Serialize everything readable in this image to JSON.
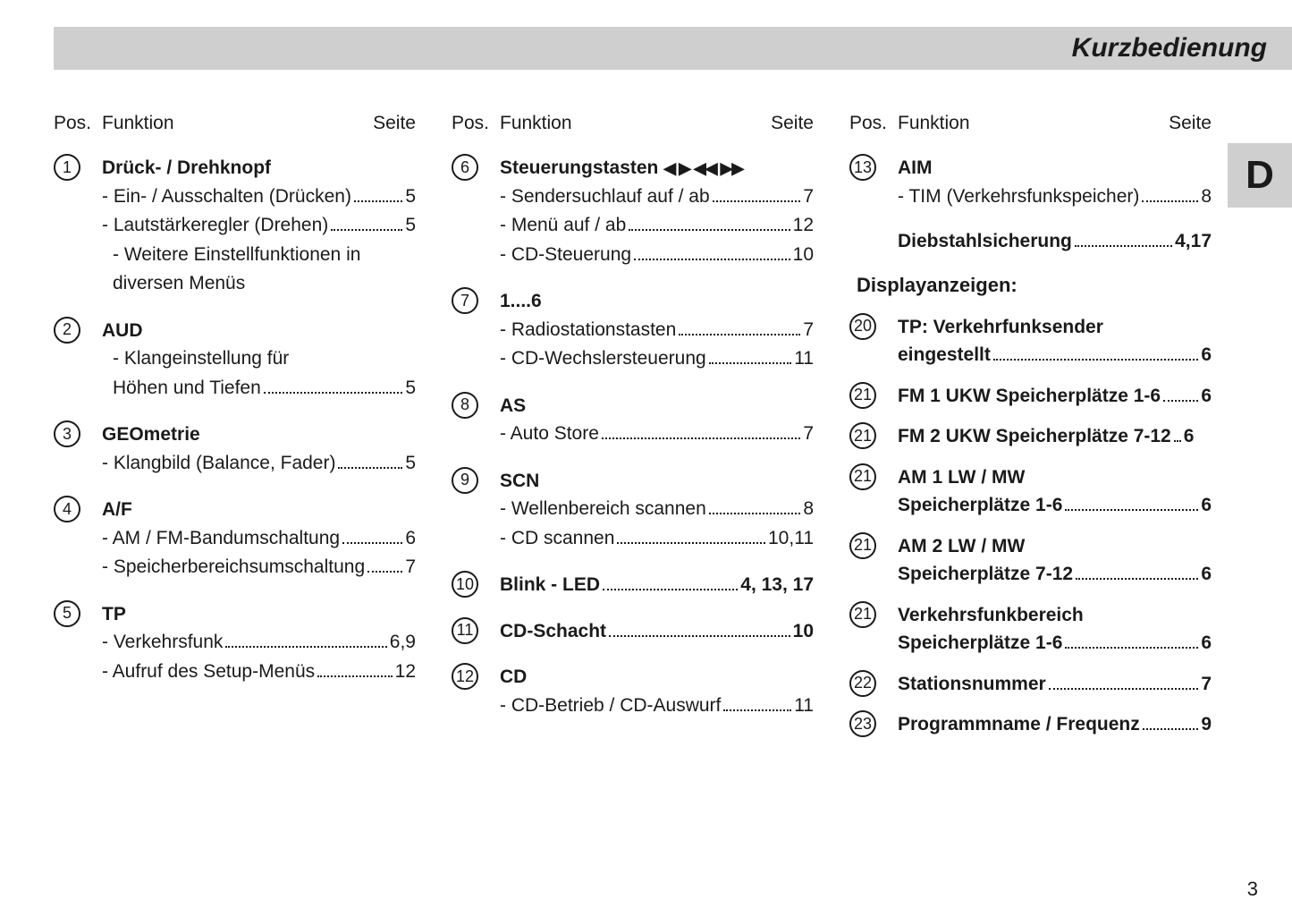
{
  "header": {
    "title": "Kurzbedienung",
    "side_tab": "D"
  },
  "column_headers": {
    "pos": "Pos.",
    "func": "Funktion",
    "page": "Seite"
  },
  "page_number": "3",
  "col1": [
    {
      "num": "1",
      "title": "Drück- / Drehknopf",
      "subs": [
        {
          "text": "- Ein- / Ausschalten (Drücken)",
          "page": "5"
        },
        {
          "text": "- Lautstärkeregler (Drehen)",
          "page": "5"
        },
        {
          "text": "- Weitere Einstellfunktionen in"
        },
        {
          "text": "diversen Menüs",
          "indent": true
        }
      ]
    },
    {
      "num": "2",
      "title": "AUD",
      "subs": [
        {
          "text": "- Klangeinstellung für"
        },
        {
          "text": "Höhen und Tiefen",
          "page": "5",
          "indent": true
        }
      ]
    },
    {
      "num": "3",
      "title": "GEOmetrie",
      "subs": [
        {
          "text": "- Klangbild (Balance, Fader)",
          "page": "5"
        }
      ]
    },
    {
      "num": "4",
      "title": "A/F",
      "subs": [
        {
          "text": "- AM / FM-Bandumschaltung",
          "page": "6"
        },
        {
          "text": "- Speicherbereichsumschaltung",
          "page": "7"
        }
      ]
    },
    {
      "num": "5",
      "title": "TP",
      "subs": [
        {
          "text": "- Verkehrsfunk",
          "page": "6,9"
        },
        {
          "text": "- Aufruf des Setup-Menüs",
          "page": "12"
        }
      ]
    }
  ],
  "col2": [
    {
      "num": "6",
      "title": "Steuerungstasten",
      "arrows": "◀ ▶  ◀◀ ▶▶",
      "subs": [
        {
          "text": "- Sendersuchlauf auf / ab",
          "page": "7"
        },
        {
          "text": "- Menü auf / ab",
          "page": "12"
        },
        {
          "text": "- CD-Steuerung",
          "page": "10"
        }
      ]
    },
    {
      "num": "7",
      "title": "1....6",
      "subs": [
        {
          "text": "- Radiostationstasten",
          "page": "7"
        },
        {
          "text": "- CD-Wechslersteuerung",
          "page": "11"
        }
      ]
    },
    {
      "num": "8",
      "title": "AS",
      "subs": [
        {
          "text": "- Auto Store",
          "page": "7"
        }
      ]
    },
    {
      "num": "9",
      "title": "SCN",
      "subs": [
        {
          "text": "- Wellenbereich scannen",
          "page": "8"
        },
        {
          "text": "- CD scannen",
          "page": "10,11"
        }
      ]
    },
    {
      "num": "10",
      "title_with_page": "Blink - LED",
      "title_page": "4, 13, 17"
    },
    {
      "num": "11",
      "title_with_page": "CD-Schacht",
      "title_page": "10"
    },
    {
      "num": "12",
      "title": "CD",
      "subs": [
        {
          "text": "- CD-Betrieb / CD-Auswurf",
          "page": "11"
        }
      ]
    }
  ],
  "col3_top": [
    {
      "num": "13",
      "title": "AIM",
      "subs": [
        {
          "text": "- TIM (Verkehrsfunkspeicher)",
          "page": "8"
        }
      ],
      "extra_title": "Diebstahlsicherung",
      "extra_page": "4,17"
    }
  ],
  "col3_heading": "Displayanzeigen:",
  "col3_display": [
    {
      "num": "20",
      "lines": [
        "TP: Verkehrfunksender",
        "eingestellt"
      ],
      "page": "6"
    },
    {
      "num": "21",
      "lines": [
        "FM 1 UKW Speicherplätze 1-6"
      ],
      "page": "6"
    },
    {
      "num": "21",
      "lines": [
        "FM 2 UKW Speicherplätze 7-12"
      ],
      "page": "6",
      "tight": true
    },
    {
      "num": "21",
      "lines": [
        "AM 1 LW / MW",
        "Speicherplätze 1-6"
      ],
      "page": "6"
    },
    {
      "num": "21",
      "lines": [
        "AM 2 LW / MW",
        "Speicherplätze 7-12"
      ],
      "page": "6"
    },
    {
      "num": "21",
      "lines": [
        "Verkehrsfunkbereich",
        "Speicherplätze 1-6"
      ],
      "page": "6"
    },
    {
      "num": "22",
      "lines": [
        "Stationsnummer"
      ],
      "page": "7"
    },
    {
      "num": "23",
      "lines": [
        "Programmname / Frequenz"
      ],
      "page": "9"
    }
  ]
}
